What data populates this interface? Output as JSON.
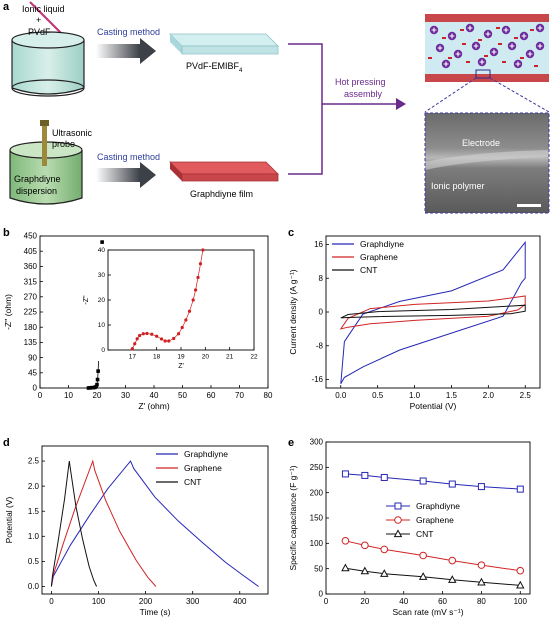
{
  "panel_a": {
    "label": "a",
    "beaker1_text_1": "Ionic liquid",
    "beaker1_text_2": "+",
    "beaker1_text_3": "PVdF",
    "casting_1": "Casting method",
    "film1_label": "PVdF-EMIBF",
    "film1_sub": "4",
    "probe_label_1": "Ultrasonic",
    "probe_label_2": "probe",
    "beaker2_text_1": "Graphdiyne",
    "beaker2_text_2": "dispersion",
    "casting_2": "Casting method",
    "film2_label": "Graphdiyne film",
    "hot_1": "Hot pressing",
    "hot_2": "assembly",
    "sem_electrode": "Electrode",
    "sem_polymer": "Ionic polymer",
    "colors": {
      "purple": "#6a2a8c",
      "blue_text": "#2c3d9c",
      "film_red": "#c8474b",
      "film_green": "#bfe3e5",
      "sem_border": "#3a3aa0"
    }
  },
  "chart_data": [
    {
      "panel": "b",
      "type": "scatter",
      "xlabel": "Z' (ohm)",
      "ylabel": "-Z'' (ohm)",
      "xlim": [
        0,
        80
      ],
      "ylim": [
        0,
        450
      ],
      "xticks": [
        0,
        10,
        20,
        30,
        40,
        50,
        60,
        70,
        80
      ],
      "yticks": [
        0,
        45,
        90,
        135,
        180,
        225,
        270,
        315,
        360,
        405,
        450
      ],
      "series": [
        {
          "color": "#000000",
          "x": [
            17.0,
            17.6,
            18.2,
            18.8,
            19.3,
            19.7,
            20.0,
            20.2,
            20.4,
            20.6,
            20.8,
            21.0,
            21.2,
            21.4,
            21.6,
            21.8
          ],
          "y": [
            0,
            0.5,
            1,
            1,
            2,
            4,
            10,
            25,
            50,
            90,
            140,
            200,
            260,
            320,
            380,
            432
          ]
        }
      ],
      "inset": {
        "xlabel": "Z'",
        "ylabel": "-Z''",
        "xlim": [
          16,
          22
        ],
        "ylim": [
          0,
          40
        ],
        "xticks": [
          17,
          18,
          19,
          20,
          21,
          22
        ],
        "yticks": [
          0,
          10,
          20,
          30,
          40
        ],
        "color": "#d11f1f",
        "x": [
          17.0,
          17.1,
          17.2,
          17.3,
          17.45,
          17.6,
          17.8,
          18.0,
          18.2,
          18.35,
          18.5,
          18.7,
          18.9,
          19.05,
          19.2,
          19.35,
          19.5,
          19.6,
          19.7,
          19.8,
          19.9
        ],
        "y": [
          0.5,
          2.5,
          4.5,
          5.8,
          6.5,
          6.6,
          6.3,
          5.5,
          4.4,
          3.6,
          3.6,
          4.6,
          6.5,
          9.0,
          12.0,
          15.5,
          20.0,
          24.0,
          29.0,
          34.5,
          40.0
        ]
      }
    },
    {
      "panel": "c",
      "type": "line",
      "xlabel": "Potential (V)",
      "ylabel": "Current density (A g⁻¹)",
      "xlim": [
        -0.2,
        2.7
      ],
      "ylim": [
        -18,
        18
      ],
      "xticks": [
        0.0,
        0.5,
        1.0,
        1.5,
        2.0,
        2.5
      ],
      "yticks": [
        -16,
        -8,
        0,
        8,
        16
      ],
      "legend_position": "top-left",
      "series": [
        {
          "name": "Graphdiyne",
          "color": "#2727b7",
          "x": [
            0.0,
            0.05,
            0.3,
            0.8,
            1.5,
            2.2,
            2.5,
            2.5,
            2.45,
            2.2,
            1.5,
            0.8,
            0.3,
            0.05,
            0.0
          ],
          "y": [
            -17.0,
            -7.0,
            -0.5,
            2.5,
            5.0,
            10.0,
            16.5,
            8.0,
            7.0,
            -1.0,
            -5.0,
            -9.0,
            -13.0,
            -15.5,
            -17.0
          ]
        },
        {
          "name": "Graphene",
          "color": "#d12424",
          "x": [
            0.0,
            0.1,
            0.4,
            1.0,
            2.0,
            2.5,
            2.5,
            2.4,
            2.0,
            1.0,
            0.4,
            0.1,
            0.0
          ],
          "y": [
            -4.0,
            -1.5,
            0.8,
            1.8,
            2.6,
            3.8,
            1.8,
            0.5,
            -1.0,
            -2.0,
            -2.8,
            -3.6,
            -4.0
          ]
        },
        {
          "name": "CNT",
          "color": "#111111",
          "x": [
            0.0,
            0.1,
            0.5,
            1.5,
            2.5,
            2.5,
            2.3,
            1.5,
            0.5,
            0.1,
            0.0
          ],
          "y": [
            -1.4,
            -0.6,
            0.1,
            0.6,
            1.6,
            0.2,
            -0.4,
            -0.8,
            -1.1,
            -1.3,
            -1.4
          ]
        }
      ]
    },
    {
      "panel": "d",
      "type": "line",
      "xlabel": "Time (s)",
      "ylabel": "Potential (V)",
      "xlim": [
        -20,
        460
      ],
      "ylim": [
        -0.15,
        2.8
      ],
      "xticks": [
        0,
        100,
        200,
        300,
        400
      ],
      "yticks": [
        0.0,
        0.5,
        1.0,
        1.5,
        2.0,
        2.5
      ],
      "legend_position": "top-right",
      "series": [
        {
          "name": "Graphdiyne",
          "color": "#2727b7",
          "x": [
            0,
            4,
            40,
            80,
            120,
            168,
            175,
            220,
            270,
            320,
            370,
            410,
            440
          ],
          "y": [
            0.0,
            0.2,
            0.82,
            1.4,
            1.95,
            2.5,
            2.35,
            1.78,
            1.3,
            0.88,
            0.48,
            0.2,
            0.0
          ]
        },
        {
          "name": "Graphene",
          "color": "#d12424",
          "x": [
            0,
            3,
            25,
            50,
            88,
            92,
            115,
            145,
            180,
            205,
            222
          ],
          "y": [
            0.0,
            0.2,
            0.85,
            1.55,
            2.5,
            2.32,
            1.72,
            1.1,
            0.52,
            0.18,
            0.0
          ]
        },
        {
          "name": "CNT",
          "color": "#111111",
          "x": [
            0,
            2,
            15,
            28,
            38,
            41,
            52,
            66,
            80,
            90,
            96
          ],
          "y": [
            0.0,
            0.2,
            0.95,
            1.75,
            2.5,
            2.3,
            1.6,
            0.95,
            0.4,
            0.12,
            0.0
          ]
        }
      ]
    },
    {
      "panel": "e",
      "type": "line",
      "xlabel": "Scan rate (mV s⁻¹)",
      "ylabel": "Specific capacitance (F g⁻¹)",
      "xlim": [
        0,
        105
      ],
      "ylim": [
        0,
        300
      ],
      "xticks": [
        0,
        20,
        40,
        60,
        80,
        100
      ],
      "yticks": [
        0,
        50,
        100,
        150,
        200,
        250,
        300
      ],
      "legend_position": "center-right",
      "x": [
        10,
        20,
        30,
        50,
        65,
        80,
        100
      ],
      "series": [
        {
          "name": "Graphdiyne",
          "color": "#2727b7",
          "marker": "square",
          "values": [
            237,
            234,
            230,
            223,
            217,
            212,
            207
          ]
        },
        {
          "name": "Graphene",
          "color": "#d12424",
          "marker": "circle",
          "values": [
            105,
            96,
            88,
            76,
            66,
            57,
            46
          ]
        },
        {
          "name": "CNT",
          "color": "#111111",
          "marker": "triangle",
          "values": [
            51,
            45,
            40,
            34,
            28,
            23,
            17
          ]
        }
      ]
    }
  ]
}
